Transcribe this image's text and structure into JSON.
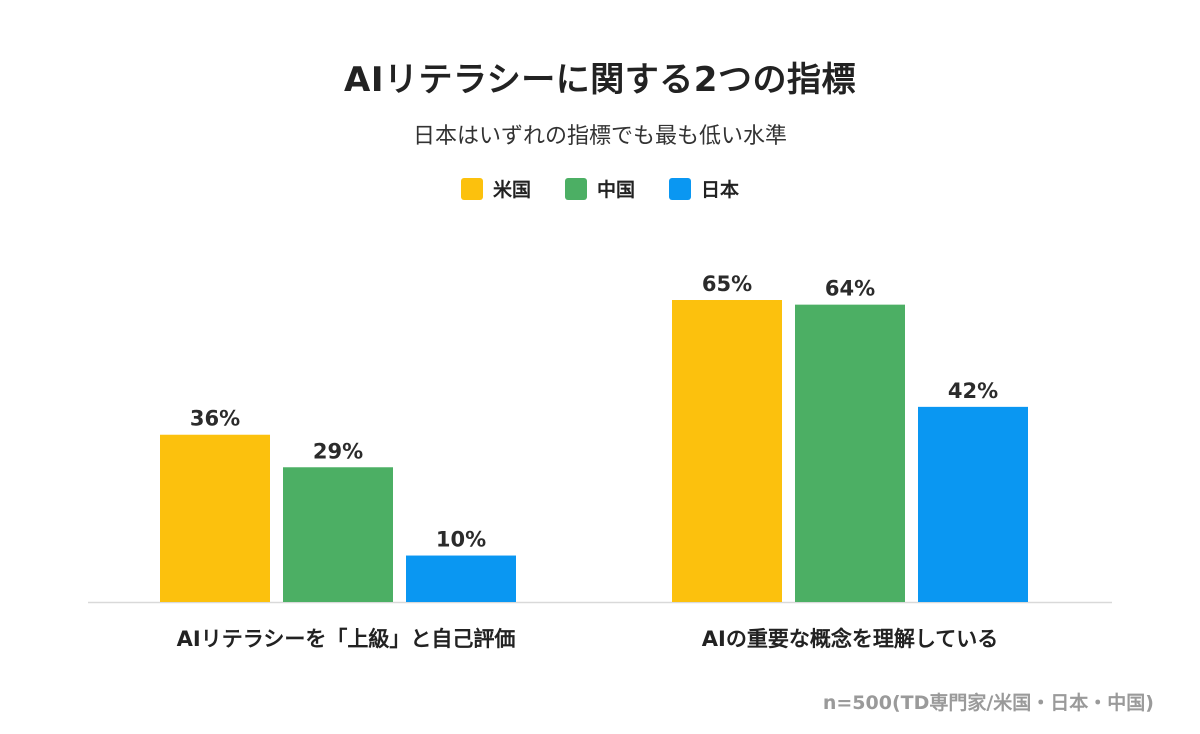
{
  "header": {
    "title": "AIリテラシーに関する2つの指標",
    "subtitle": "日本はいずれの指標でも最も低い水準"
  },
  "legend": {
    "items": [
      {
        "label": "米国",
        "color": "#FCC10D"
      },
      {
        "label": "中国",
        "color": "#4CAF64"
      },
      {
        "label": "日本",
        "color": "#0A97F2"
      }
    ]
  },
  "chart_data": {
    "type": "bar",
    "categories": [
      "AIリテラシーを「上級」と自己評価",
      "AIの重要な概念を理解している"
    ],
    "series": [
      {
        "name": "米国",
        "values": [
          36,
          65
        ],
        "labels": [
          "36%",
          "65%"
        ],
        "color": "#FCC10D"
      },
      {
        "name": "中国",
        "values": [
          29,
          64
        ],
        "labels": [
          "29%",
          "64%"
        ],
        "color": "#4CAF64"
      },
      {
        "name": "日本",
        "values": [
          10,
          42
        ],
        "labels": [
          "10%",
          "42%"
        ],
        "color": "#0A97F2"
      }
    ],
    "unit": "%",
    "ylim": [
      0,
      100
    ],
    "grid": false,
    "legend_position": "top-center"
  },
  "footer": {
    "note": "n=500(TD専門家/米国・日本・中国)"
  }
}
